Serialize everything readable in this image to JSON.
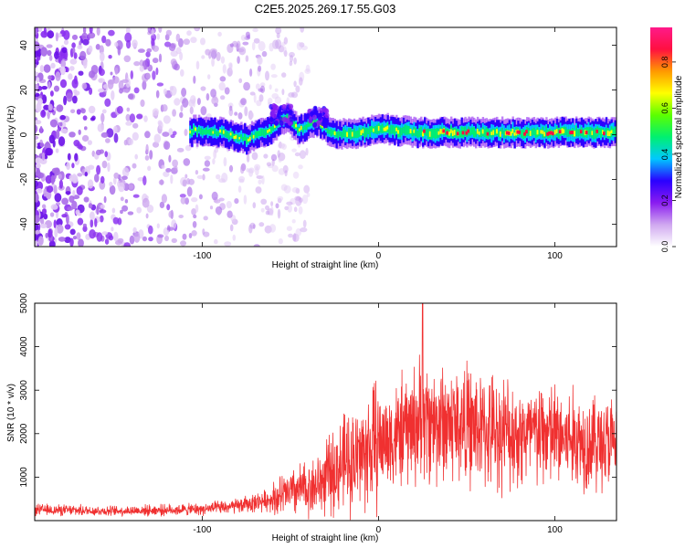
{
  "title": "C2E5.2025.269.17.55.G03",
  "chart_data": [
    {
      "type": "heatmap",
      "panel": "spectrogram",
      "xlabel": "Height of straight line (km)",
      "ylabel": "Frequency (Hz)",
      "xlim": [
        -195,
        135
      ],
      "ylim": [
        -50,
        48
      ],
      "xticks": [
        -100,
        0,
        100
      ],
      "yticks": [
        -40,
        -20,
        0,
        20,
        40
      ],
      "colorbar": {
        "label": "Normalized spectral amplitude",
        "range": [
          0,
          0.95
        ],
        "ticks": [
          0.0,
          0.2,
          0.4,
          0.6,
          0.8
        ],
        "tick_labels": [
          "0.0",
          "0.2",
          "0.4",
          "0.6",
          "0.8"
        ],
        "colors": [
          "#ffffff",
          "#d0a8f0",
          "#8a1cf0",
          "#2a00ff",
          "#00c8ff",
          "#00f070",
          "#5cff00",
          "#ffff00",
          "#ff9900",
          "#ff1040",
          "#ff1a8a"
        ]
      },
      "regions": [
        {
          "name": "noise",
          "x_range": [
            -195,
            -60
          ],
          "frequency_range": [
            -50,
            48
          ],
          "amplitude": 0.15
        },
        {
          "name": "signal",
          "x_range": [
            -107,
            135
          ],
          "center_frequency": 0,
          "bandwidth_hz": 10,
          "amplitude_range": [
            0.45,
            0.95
          ]
        }
      ],
      "signal_trace": [
        {
          "x": -105,
          "freq": 2
        },
        {
          "x": -90,
          "freq": 1
        },
        {
          "x": -75,
          "freq": -2
        },
        {
          "x": -60,
          "freq": 3
        },
        {
          "x": -52,
          "freq": 8
        },
        {
          "x": -45,
          "freq": 2
        },
        {
          "x": -35,
          "freq": 6
        },
        {
          "x": -25,
          "freq": 0
        },
        {
          "x": -10,
          "freq": 1
        },
        {
          "x": 0,
          "freq": 3
        },
        {
          "x": 20,
          "freq": 1
        },
        {
          "x": 50,
          "freq": 1
        },
        {
          "x": 100,
          "freq": 1
        },
        {
          "x": 135,
          "freq": 1
        }
      ]
    },
    {
      "type": "line",
      "panel": "snr",
      "xlabel": "Height of straight line (km)",
      "ylabel": "SNR (10 * v/v)",
      "xlim": [
        -195,
        135
      ],
      "ylim": [
        0,
        5000
      ],
      "xticks": [
        -100,
        0,
        100
      ],
      "yticks": [
        1000,
        2000,
        3000,
        4000,
        5000
      ],
      "line_color": "#f03030",
      "series": [
        {
          "name": "SNR (envelope)",
          "x": [
            -195,
            -150,
            -100,
            -80,
            -60,
            -45,
            -35,
            -20,
            -10,
            0,
            10,
            20,
            25,
            35,
            50,
            60,
            70,
            85,
            95,
            105,
            115,
            125,
            135
          ],
          "y": [
            250,
            220,
            260,
            330,
            500,
            700,
            800,
            1300,
            1500,
            1800,
            1950,
            2200,
            2300,
            2250,
            2200,
            2050,
            2050,
            1950,
            2000,
            1900,
            1850,
            1800,
            1750
          ]
        }
      ],
      "peak": {
        "x": 25,
        "y": 5000
      }
    }
  ]
}
